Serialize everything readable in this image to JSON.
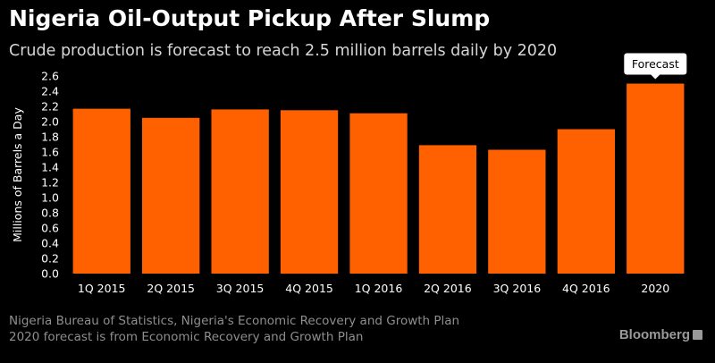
{
  "header": {
    "title": "Nigeria Oil-Output Pickup After Slump",
    "subtitle": "Crude production is forecast to reach 2.5 million barrels daily by 2020"
  },
  "chart_data": {
    "type": "bar",
    "categories": [
      "1Q 2015",
      "2Q 2015",
      "3Q 2015",
      "4Q 2015",
      "1Q 2016",
      "2Q 2016",
      "3Q 2016",
      "4Q 2016",
      "2020"
    ],
    "values": [
      2.17,
      2.05,
      2.16,
      2.15,
      2.11,
      1.69,
      1.63,
      1.9,
      2.5
    ],
    "ylabel": "Millions of Barrels a Day",
    "xlabel": "",
    "ylim": [
      0,
      2.6
    ],
    "yticks": [
      "0.0",
      "0.2",
      "0.4",
      "0.6",
      "0.8",
      "1.0",
      "1.2",
      "1.4",
      "1.6",
      "1.8",
      "2.0",
      "2.2",
      "2.4",
      "2.6"
    ],
    "bar_color": "#ff6100",
    "annotation": {
      "category": "2020",
      "text": "Forecast"
    },
    "grid": false
  },
  "footer": {
    "source_line1": "Nigeria Bureau of Statistics, Nigeria's Economic Recovery and Growth Plan",
    "source_line2": "2020 forecast is from Economic Recovery and Growth Plan",
    "brand": "Bloomberg"
  }
}
